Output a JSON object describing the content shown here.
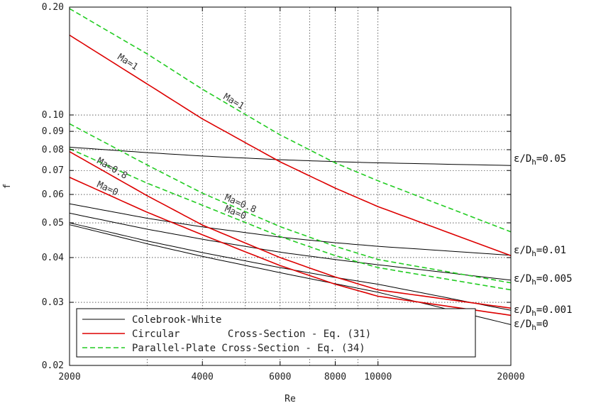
{
  "chart_data": {
    "type": "line",
    "xlabel": "Re",
    "ylabel": "f",
    "x_scale": "log",
    "y_scale": "log",
    "xlim": [
      2000,
      20000
    ],
    "ylim": [
      0.02,
      0.2
    ],
    "x_ticks": [
      2000,
      4000,
      6000,
      8000,
      10000,
      20000
    ],
    "x_tick_labels": [
      "2000",
      "4000",
      "6000",
      "8000",
      "10000",
      "20000"
    ],
    "y_ticks": [
      0.02,
      0.03,
      0.04,
      0.05,
      0.06,
      0.07,
      0.08,
      0.09,
      0.1,
      0.2
    ],
    "y_tick_labels": [
      "0.02",
      "0.03",
      "0.04",
      "0.05",
      "0.06",
      "0.07",
      "0.08",
      "0.09",
      "0.10",
      "0.20"
    ],
    "grid": true,
    "legend_position": "bottom-left",
    "legend": [
      {
        "key": "cw",
        "label": "Colebrook-White",
        "color": "#000000",
        "dash": "solid"
      },
      {
        "key": "circ",
        "label": "Circular        Cross-Section - Eq. (31)",
        "color": "#dd0000",
        "dash": "solid"
      },
      {
        "key": "pp",
        "label": "Parallel-Plate Cross-Section - Eq. (34)",
        "color": "#22cc22",
        "dash": "dashed"
      }
    ],
    "series": [
      {
        "group": "cw",
        "right_label": {
          "prefix": "ε/D",
          "sub": "h",
          "suffix": "=0.05"
        },
        "x": [
          2000,
          3000,
          4000,
          6000,
          8000,
          10000,
          20000
        ],
        "y": [
          0.0813,
          0.0785,
          0.0768,
          0.075,
          0.0741,
          0.0735,
          0.0723
        ]
      },
      {
        "group": "cw",
        "right_label": {
          "prefix": "ε/D",
          "sub": "h",
          "suffix": "=0.01"
        },
        "x": [
          2000,
          3000,
          4000,
          6000,
          8000,
          10000,
          20000
        ],
        "y": [
          0.0565,
          0.0515,
          0.0487,
          0.0456,
          0.044,
          0.043,
          0.0406
        ]
      },
      {
        "group": "cw",
        "right_label": {
          "prefix": "ε/D",
          "sub": "h",
          "suffix": "=0.005"
        },
        "x": [
          2000,
          3000,
          4000,
          6000,
          8000,
          10000,
          20000
        ],
        "y": [
          0.0532,
          0.048,
          0.045,
          0.0414,
          0.0395,
          0.0382,
          0.0346
        ]
      },
      {
        "group": "cw",
        "right_label": {
          "prefix": "ε/D",
          "sub": "h",
          "suffix": "=0.001"
        },
        "x": [
          2000,
          3000,
          4000,
          6000,
          8000,
          10000,
          20000
        ],
        "y": [
          0.05,
          0.0445,
          0.0413,
          0.0375,
          0.0352,
          0.0337,
          0.0285
        ]
      },
      {
        "group": "cw",
        "right_label": {
          "prefix": "ε/D",
          "sub": "h",
          "suffix": "=0"
        },
        "x": [
          2000,
          3000,
          4000,
          6000,
          8000,
          10000,
          20000
        ],
        "y": [
          0.0494,
          0.0437,
          0.0403,
          0.0363,
          0.0338,
          0.032,
          0.026
        ]
      },
      {
        "group": "circ",
        "curve_label": "Ma=1",
        "x": [
          2000,
          3000,
          4000,
          6000,
          8000,
          10000,
          20000
        ],
        "y": [
          0.167,
          0.122,
          0.0975,
          0.074,
          0.0625,
          0.0555,
          0.0405
        ]
      },
      {
        "group": "circ",
        "curve_label": "Ma=0.8",
        "x": [
          2000,
          3000,
          4000,
          6000,
          8000,
          10000,
          20000
        ],
        "y": [
          0.079,
          0.0595,
          0.0493,
          0.04,
          0.0353,
          0.0325,
          0.0289
        ]
      },
      {
        "group": "circ",
        "curve_label": "Ma=0",
        "x": [
          2000,
          3000,
          4000,
          6000,
          8000,
          10000,
          20000
        ],
        "y": [
          0.067,
          0.0535,
          0.0463,
          0.038,
          0.0337,
          0.0312,
          0.0276
        ]
      },
      {
        "group": "pp",
        "curve_label": "Ma=1",
        "x": [
          2000,
          3000,
          4000,
          6000,
          8000,
          10000,
          20000
        ],
        "y": [
          0.198,
          0.148,
          0.118,
          0.088,
          0.0735,
          0.0655,
          0.0472
        ]
      },
      {
        "group": "pp",
        "curve_label": "Ma=0.8",
        "x": [
          2000,
          3000,
          4000,
          6000,
          8000,
          10000,
          20000
        ],
        "y": [
          0.0945,
          0.0725,
          0.0605,
          0.0488,
          0.043,
          0.0395,
          0.034
        ]
      },
      {
        "group": "pp",
        "curve_label": "Ma=0",
        "x": [
          2000,
          3000,
          4000,
          6000,
          8000,
          10000,
          20000
        ],
        "y": [
          0.0805,
          0.0645,
          0.056,
          0.0458,
          0.0405,
          0.0375,
          0.0325
        ]
      }
    ]
  }
}
